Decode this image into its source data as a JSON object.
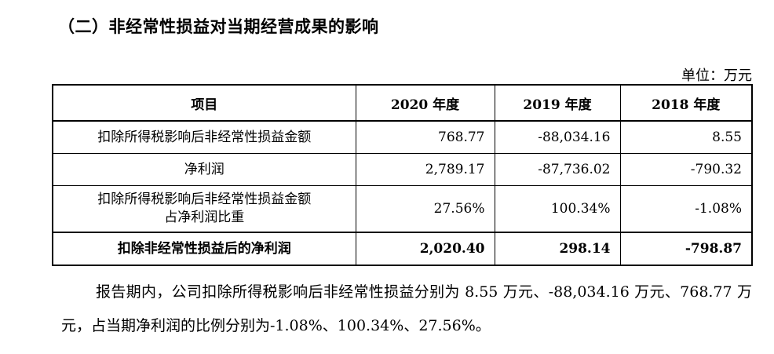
{
  "heading": "（二）非经常性损益对当期经营成果的影响",
  "unit": "单位：万元",
  "table": {
    "headers": [
      "项目",
      "2020 年度",
      "2019 年度",
      "2018 年度"
    ],
    "rows": [
      {
        "label": "扣除所得税影响后非经常性损益金额",
        "values": [
          "768.77",
          "-88,034.16",
          "8.55"
        ]
      },
      {
        "label": "净利润",
        "values": [
          "2,789.17",
          "-87,736.02",
          "-790.32"
        ]
      },
      {
        "label_line1": "扣除所得税影响后非经常性损益金额",
        "label_line2": "占净利润比重",
        "values": [
          "27.56%",
          "100.34%",
          "-1.08%"
        ]
      },
      {
        "label": "扣除非经常性损益后的净利润",
        "values": [
          "2,020.40",
          "298.14",
          "-798.87"
        ]
      }
    ]
  },
  "paragraph": "报告期内，公司扣除所得税影响后非经常性损益分别为 8.55 万元、-88,034.16 万元、768.77 万元，占当期净利润的比例分别为-1.08%、100.34%、27.56%。"
}
